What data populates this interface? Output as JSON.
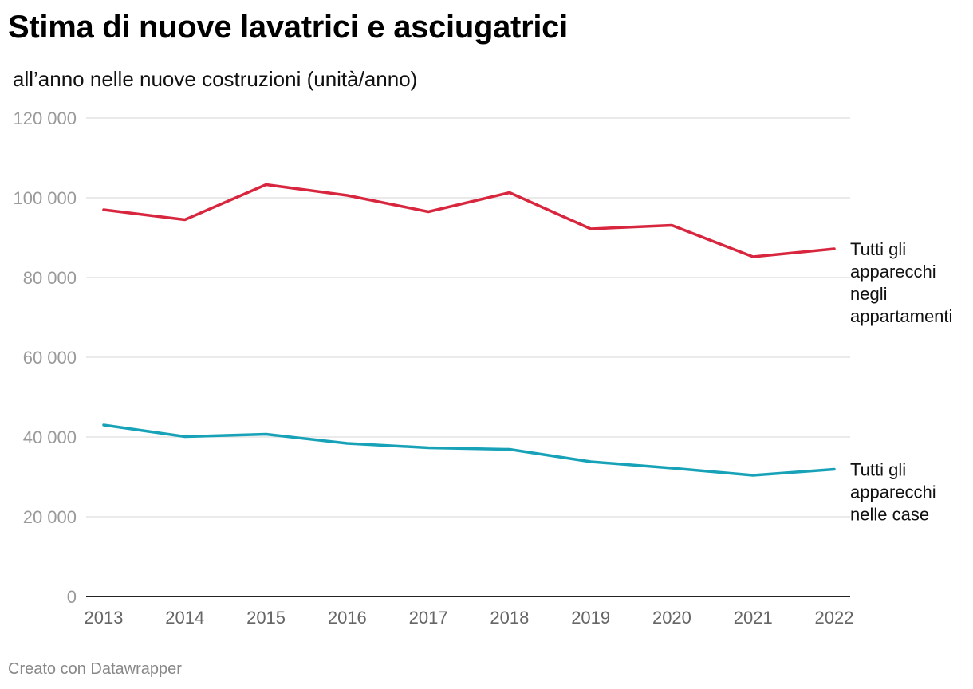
{
  "header": {
    "title": "Stima di nuove lavatrici e asciugatrici",
    "subtitle": "all’anno nelle nuove costruzioni (unità/anno)"
  },
  "footer": {
    "credit": "Creato con Datawrapper"
  },
  "chart_data": {
    "type": "line",
    "title": "Stima di nuove lavatrici e asciugatrici",
    "subtitle": "all’anno nelle nuove costruzioni (unità/anno)",
    "xlabel": "",
    "ylabel": "",
    "x": [
      "2013",
      "2014",
      "2015",
      "2016",
      "2017",
      "2018",
      "2019",
      "2020",
      "2021",
      "2022"
    ],
    "ylim": [
      0,
      120000
    ],
    "yticks": [
      0,
      20000,
      40000,
      60000,
      80000,
      100000,
      120000
    ],
    "ytick_labels": [
      "0",
      "20 000",
      "40 000",
      "60 000",
      "80 000",
      "100 000",
      "120 000"
    ],
    "grid": true,
    "series": [
      {
        "name": "Tutti gli apparecchi negli appartamenti",
        "label_lines": [
          "Tutti gli",
          "apparecchi",
          "negli",
          "appartamenti"
        ],
        "color": "#d7263d",
        "values": [
          97000,
          94500,
          103300,
          100600,
          96500,
          101300,
          92200,
          93100,
          85200,
          87200
        ]
      },
      {
        "name": "Tutti gli apparecchi nelle case",
        "label_lines": [
          "Tutti gli",
          "apparecchi",
          "nelle case"
        ],
        "color": "#17a2b8",
        "values": [
          43000,
          40100,
          40700,
          38400,
          37300,
          36900,
          33800,
          32200,
          30400,
          31900
        ]
      }
    ]
  }
}
